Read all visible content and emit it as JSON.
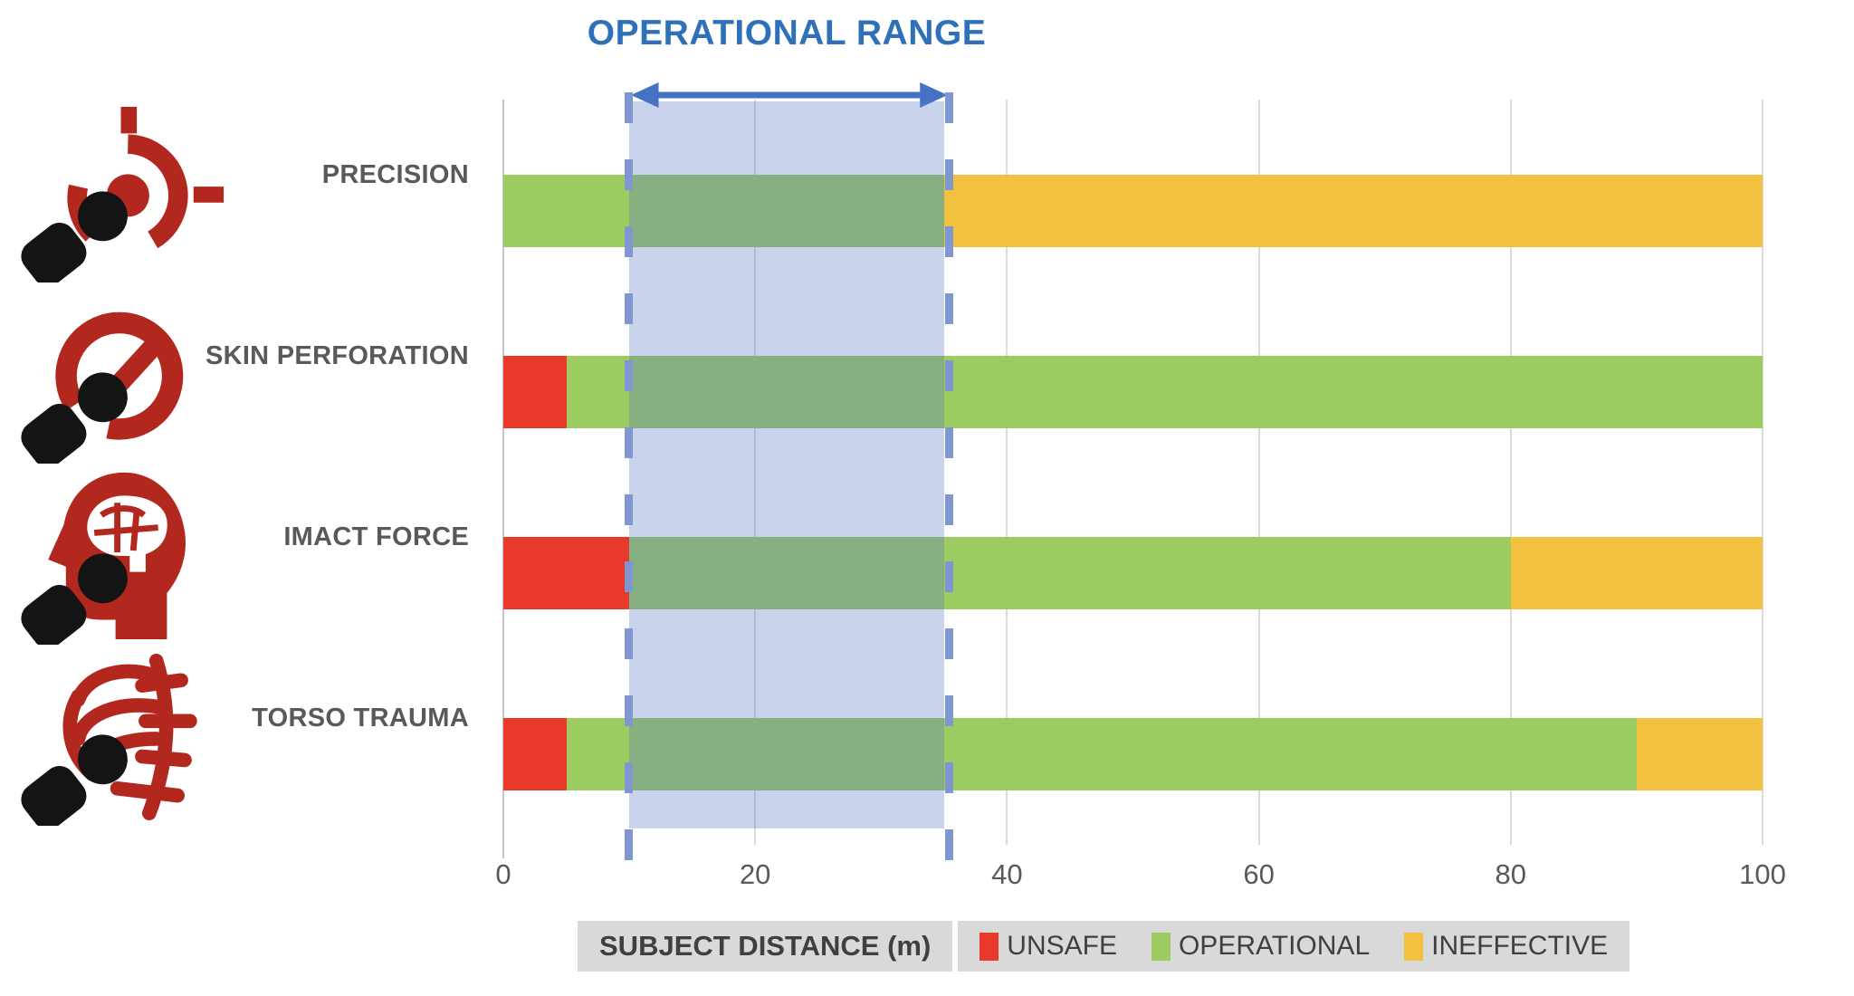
{
  "title": "OPERATIONAL RANGE",
  "colors": {
    "unsafe": "#E8392B",
    "operational": "#9CCB62",
    "ineffective": "#F3C140",
    "range_fill": "#5A7AC4",
    "dashed_blue": "#8096D0",
    "arrow_blue": "#4472C4",
    "title_blue": "#2E71B8",
    "text_gray": "#595959",
    "legend_bg": "#D9D9D9",
    "icon_red": "#B3281E",
    "bullet_black": "#141414"
  },
  "rows": [
    {
      "icon": "crosshair-target-icon"
    },
    {
      "icon": "speed-gauge-icon"
    },
    {
      "icon": "head-brain-icon"
    },
    {
      "icon": "ribcage-icon"
    }
  ],
  "chart_data": {
    "type": "bar",
    "orientation": "horizontal",
    "stacked": true,
    "title": "OPERATIONAL RANGE",
    "xlabel": "SUBJECT DISTANCE (m)",
    "xlim": [
      0,
      100
    ],
    "xticks": [
      0,
      20,
      40,
      60,
      80,
      100
    ],
    "grid": true,
    "legend_position": "bottom",
    "categories": [
      "PRECISION",
      "SKIN PERFORATION",
      "IMACT FORCE",
      "TORSO TRAUMA"
    ],
    "series": [
      {
        "name": "UNSAFE",
        "color": "#E8392B",
        "values": [
          0,
          5,
          10,
          5
        ]
      },
      {
        "name": "OPERATIONAL",
        "color": "#9CCB62",
        "values": [
          35,
          95,
          70,
          85
        ]
      },
      {
        "name": "INEFFECTIVE",
        "color": "#F3C140",
        "values": [
          65,
          0,
          20,
          10
        ]
      }
    ],
    "annotation_band": {
      "label": "OPERATIONAL RANGE",
      "from": 10,
      "to": 35
    }
  }
}
